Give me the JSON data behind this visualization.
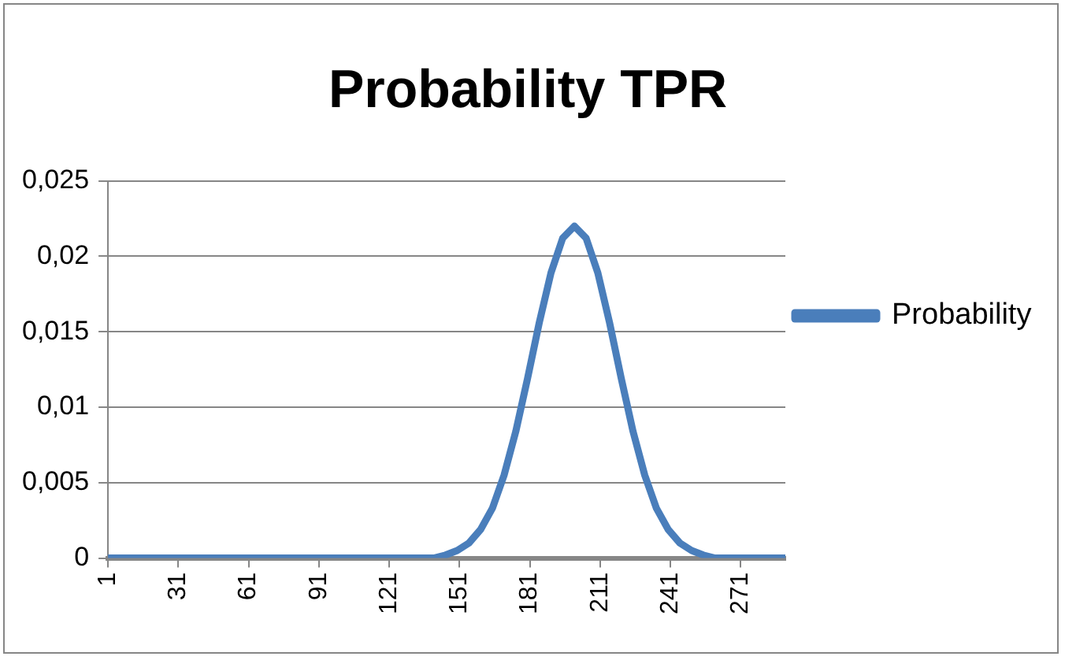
{
  "chart_data": {
    "type": "line",
    "title": "Probability TPR",
    "x": [
      1,
      100,
      140,
      145,
      150,
      155,
      160,
      165,
      170,
      175,
      180,
      185,
      190,
      195,
      200,
      205,
      210,
      215,
      220,
      225,
      230,
      235,
      240,
      245,
      250,
      255,
      260,
      290
    ],
    "series": [
      {
        "name": "Probability",
        "color": "#4a7ebb",
        "values": [
          0,
          0,
          0,
          0.0002,
          0.0005,
          0.001,
          0.0019,
          0.0033,
          0.0055,
          0.0084,
          0.0119,
          0.0156,
          0.0189,
          0.0212,
          0.022,
          0.0212,
          0.0189,
          0.0156,
          0.0119,
          0.0084,
          0.0055,
          0.0033,
          0.0019,
          0.001,
          0.0005,
          0.0002,
          0,
          0
        ]
      }
    ],
    "xlim": [
      1,
      290
    ],
    "xticks": [
      1,
      31,
      61,
      91,
      121,
      151,
      181,
      211,
      241,
      271
    ],
    "ylim": [
      0,
      0.025
    ],
    "yticks": [
      0,
      {
        "value": 0.005,
        "label": "0,005"
      },
      {
        "value": 0.01,
        "label": "0,01"
      },
      {
        "value": 0.015,
        "label": "0,015"
      },
      {
        "value": 0.02,
        "label": "0,02"
      },
      {
        "value": 0.025,
        "label": "0,025"
      }
    ],
    "grid": "y",
    "legend": "right",
    "marker": "none",
    "line_style": "solid"
  }
}
